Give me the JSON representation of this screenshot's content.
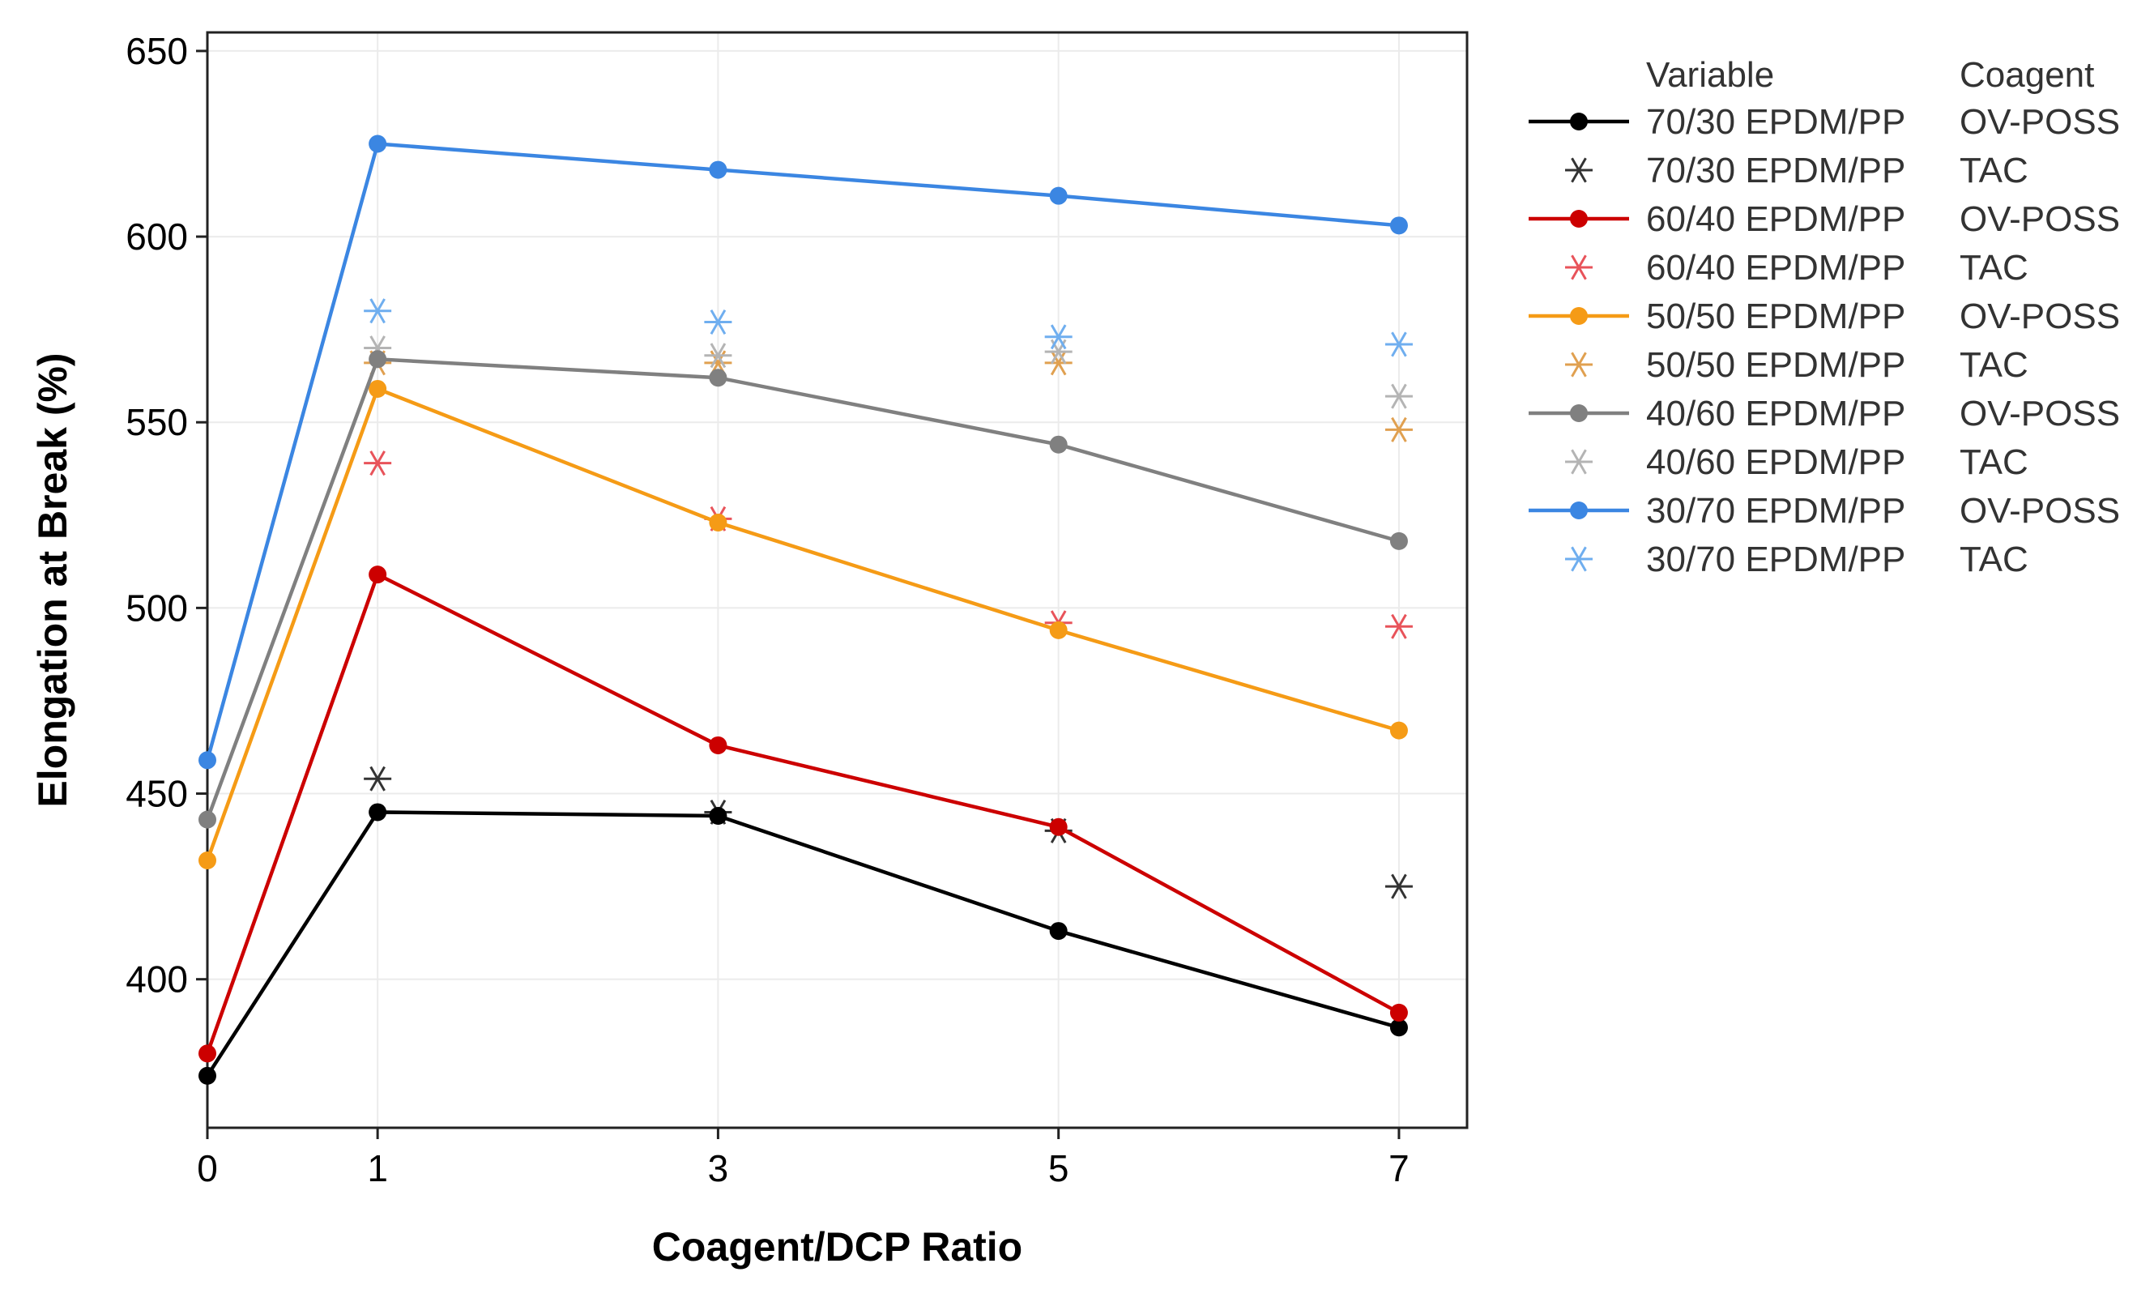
{
  "chart_data": {
    "type": "line",
    "xlabel": "Coagent/DCP Ratio",
    "ylabel": "Elongation at Break (%)",
    "x": [
      0,
      1,
      3,
      5,
      7
    ],
    "xticks": [
      0,
      1,
      3,
      5,
      7
    ],
    "yticks": [
      400,
      450,
      500,
      550,
      600,
      650
    ],
    "xlim": [
      0,
      7.4
    ],
    "ylim": [
      360,
      655
    ],
    "grid": true,
    "legend_position": "right",
    "legend_headers": [
      "Variable",
      "Coagent"
    ],
    "series": [
      {
        "variable": "70/30 EPDM/PP",
        "coagent": "OV-POSS",
        "color": "#000000",
        "marker": "circle",
        "line": true,
        "values": [
          374,
          445,
          444,
          413,
          387
        ]
      },
      {
        "variable": "70/30 EPDM/PP",
        "coagent": "TAC",
        "color": "#333333",
        "marker": "asterisk",
        "line": false,
        "values": [
          null,
          454,
          445,
          440,
          425
        ]
      },
      {
        "variable": "60/40 EPDM/PP",
        "coagent": "OV-POSS",
        "color": "#cc0000",
        "marker": "circle",
        "line": true,
        "values": [
          380,
          509,
          463,
          441,
          391
        ]
      },
      {
        "variable": "60/40 EPDM/PP",
        "coagent": "TAC",
        "color": "#e8535a",
        "marker": "asterisk",
        "line": false,
        "values": [
          null,
          539,
          524,
          496,
          495
        ]
      },
      {
        "variable": "50/50 EPDM/PP",
        "coagent": "OV-POSS",
        "color": "#f59b16",
        "marker": "circle",
        "line": true,
        "values": [
          432,
          559,
          523,
          494,
          467
        ]
      },
      {
        "variable": "50/50 EPDM/PP",
        "coagent": "TAC",
        "color": "#e0a050",
        "marker": "asterisk",
        "line": false,
        "values": [
          null,
          566,
          566,
          566,
          548
        ]
      },
      {
        "variable": "40/60 EPDM/PP",
        "coagent": "OV-POSS",
        "color": "#808080",
        "marker": "circle",
        "line": true,
        "values": [
          443,
          567,
          562,
          544,
          518
        ]
      },
      {
        "variable": "40/60 EPDM/PP",
        "coagent": "TAC",
        "color": "#b4b4b4",
        "marker": "asterisk",
        "line": false,
        "values": [
          null,
          570,
          568,
          569,
          557
        ]
      },
      {
        "variable": "30/70 EPDM/PP",
        "coagent": "OV-POSS",
        "color": "#3b86e2",
        "marker": "circle",
        "line": true,
        "values": [
          459,
          625,
          618,
          611,
          603
        ]
      },
      {
        "variable": "30/70 EPDM/PP",
        "coagent": "TAC",
        "color": "#6faeef",
        "marker": "asterisk",
        "line": false,
        "values": [
          null,
          580,
          577,
          573,
          571
        ]
      }
    ]
  }
}
